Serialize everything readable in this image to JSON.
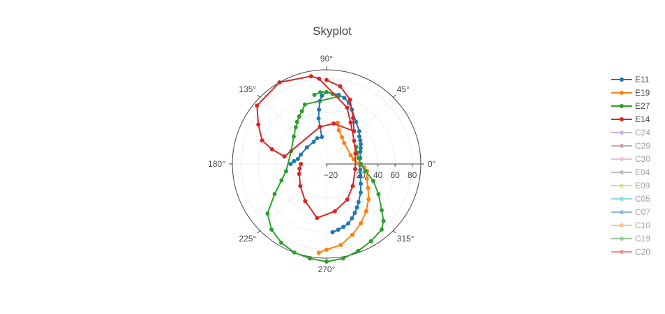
{
  "chart_data": {
    "type": "scatter",
    "subtype": "polar-skyplot",
    "title": "Skyplot",
    "angular_axis": {
      "direction": "counterclockwise",
      "rotation_deg": 0,
      "tick_labels": [
        "0°",
        "45°",
        "90°",
        "135°",
        "180°",
        "225°",
        "270°",
        "315°"
      ],
      "tick_values_deg": [
        0,
        45,
        90,
        135,
        180,
        225,
        270,
        315
      ]
    },
    "radial_axis": {
      "range": [
        -20,
        90
      ],
      "tick_values": [
        -20,
        20,
        40,
        60,
        80
      ],
      "tick_labels": [
        "−20",
        "20",
        "40",
        "60",
        "80"
      ]
    },
    "grid": true,
    "legend_position": "right",
    "series": [
      {
        "name": "E11",
        "color": "#1f77b4",
        "visible": true,
        "points": [
          [
            180,
            22
          ],
          [
            175,
            18
          ],
          [
            170,
            14
          ],
          [
            160,
            12
          ],
          [
            140,
            10
          ],
          [
            120,
            10
          ],
          [
            110,
            12
          ],
          [
            100,
            12
          ],
          [
            100,
            24
          ],
          [
            100,
            34
          ],
          [
            98,
            44
          ],
          [
            96,
            54
          ],
          [
            94,
            60
          ],
          [
            90,
            64
          ],
          [
            80,
            62
          ],
          [
            75,
            60
          ],
          [
            70,
            56
          ],
          [
            65,
            50
          ],
          [
            55,
            40
          ],
          [
            45,
            34
          ],
          [
            40,
            30
          ],
          [
            35,
            28
          ],
          [
            30,
            26
          ],
          [
            25,
            24
          ],
          [
            20,
            22
          ],
          [
            10,
            20
          ],
          [
            0,
            18
          ],
          [
            -10,
            20
          ],
          [
            -20,
            22
          ],
          [
            -30,
            26
          ],
          [
            -40,
            32
          ],
          [
            -50,
            38
          ],
          [
            -55,
            42
          ],
          [
            -60,
            46
          ],
          [
            -65,
            50
          ],
          [
            -70,
            54
          ],
          [
            -75,
            56
          ],
          [
            -80,
            58
          ],
          [
            -85,
            60
          ]
        ]
      },
      {
        "name": "E19",
        "color": "#ff7f0e",
        "visible": true,
        "points": [
          [
            75,
            30
          ],
          [
            70,
            22
          ],
          [
            60,
            16
          ],
          [
            50,
            12
          ],
          [
            20,
            10
          ],
          [
            10,
            12
          ],
          [
            0,
            18
          ],
          [
            -5,
            24
          ],
          [
            -10,
            28
          ],
          [
            -20,
            30
          ],
          [
            -30,
            36
          ],
          [
            -40,
            44
          ],
          [
            -50,
            52
          ],
          [
            -60,
            60
          ],
          [
            -70,
            68
          ],
          [
            -80,
            76
          ],
          [
            -90,
            80
          ],
          [
            -95,
            84
          ]
        ]
      },
      {
        "name": "E27",
        "color": "#2ca02c",
        "visible": true,
        "points": [
          [
            100,
            62
          ],
          [
            95,
            64
          ],
          [
            90,
            64
          ],
          [
            85,
            62
          ],
          [
            80,
            60
          ],
          [
            110,
            54
          ],
          [
            115,
            48
          ],
          [
            120,
            44
          ],
          [
            125,
            40
          ],
          [
            130,
            36
          ],
          [
            140,
            30
          ],
          [
            160,
            24
          ],
          [
            190,
            28
          ],
          [
            200,
            36
          ],
          [
            210,
            50
          ],
          [
            220,
            70
          ],
          [
            230,
            80
          ],
          [
            240,
            86
          ],
          [
            250,
            90
          ],
          [
            260,
            92
          ],
          [
            270,
            94
          ],
          [
            280,
            92
          ],
          [
            290,
            88
          ],
          [
            300,
            84
          ],
          [
            310,
            80
          ],
          [
            315,
            74
          ],
          [
            320,
            64
          ],
          [
            330,
            50
          ],
          [
            340,
            38
          ],
          [
            350,
            26
          ],
          [
            0,
            20
          ],
          [
            10,
            18
          ],
          [
            20,
            18
          ],
          [
            30,
            20
          ]
        ]
      },
      {
        "name": "E14",
        "color": "#d62728",
        "visible": true,
        "points": [
          [
            90,
            78
          ],
          [
            80,
            72
          ],
          [
            70,
            60
          ],
          [
            60,
            42
          ],
          [
            50,
            30
          ],
          [
            80,
            28
          ],
          [
            100,
            24
          ],
          [
            170,
            30
          ],
          [
            165,
            46
          ],
          [
            160,
            60
          ],
          [
            150,
            72
          ],
          [
            140,
            86
          ],
          [
            120,
            90
          ],
          [
            100,
            84
          ],
          [
            95,
            80
          ],
          [
            70,
            50
          ],
          [
            60,
            36
          ],
          [
            40,
            22
          ],
          [
            20,
            16
          ],
          [
            350,
            14
          ],
          [
            320,
            20
          ],
          [
            300,
            28
          ],
          [
            280,
            36
          ],
          [
            260,
            44
          ],
          [
            240,
            30
          ],
          [
            220,
            20
          ],
          [
            200,
            14
          ],
          [
            190,
            12
          ],
          [
            180,
            10
          ]
        ]
      },
      {
        "name": "C24",
        "color": "#9467bd",
        "visible": false,
        "points": []
      },
      {
        "name": "C29",
        "color": "#8c564b",
        "visible": false,
        "points": []
      },
      {
        "name": "C30",
        "color": "#e377c2",
        "visible": false,
        "points": []
      },
      {
        "name": "E04",
        "color": "#7f7f7f",
        "visible": false,
        "points": []
      },
      {
        "name": "E09",
        "color": "#bcbd22",
        "visible": false,
        "points": []
      },
      {
        "name": "C05",
        "color": "#17becf",
        "visible": false,
        "points": []
      },
      {
        "name": "C07",
        "color": "#1f77b4",
        "visible": false,
        "points": []
      },
      {
        "name": "C10",
        "color": "#ff7f0e",
        "visible": false,
        "points": []
      },
      {
        "name": "C19",
        "color": "#2ca02c",
        "visible": false,
        "points": []
      },
      {
        "name": "C20",
        "color": "#d62728",
        "visible": false,
        "points": []
      }
    ]
  }
}
